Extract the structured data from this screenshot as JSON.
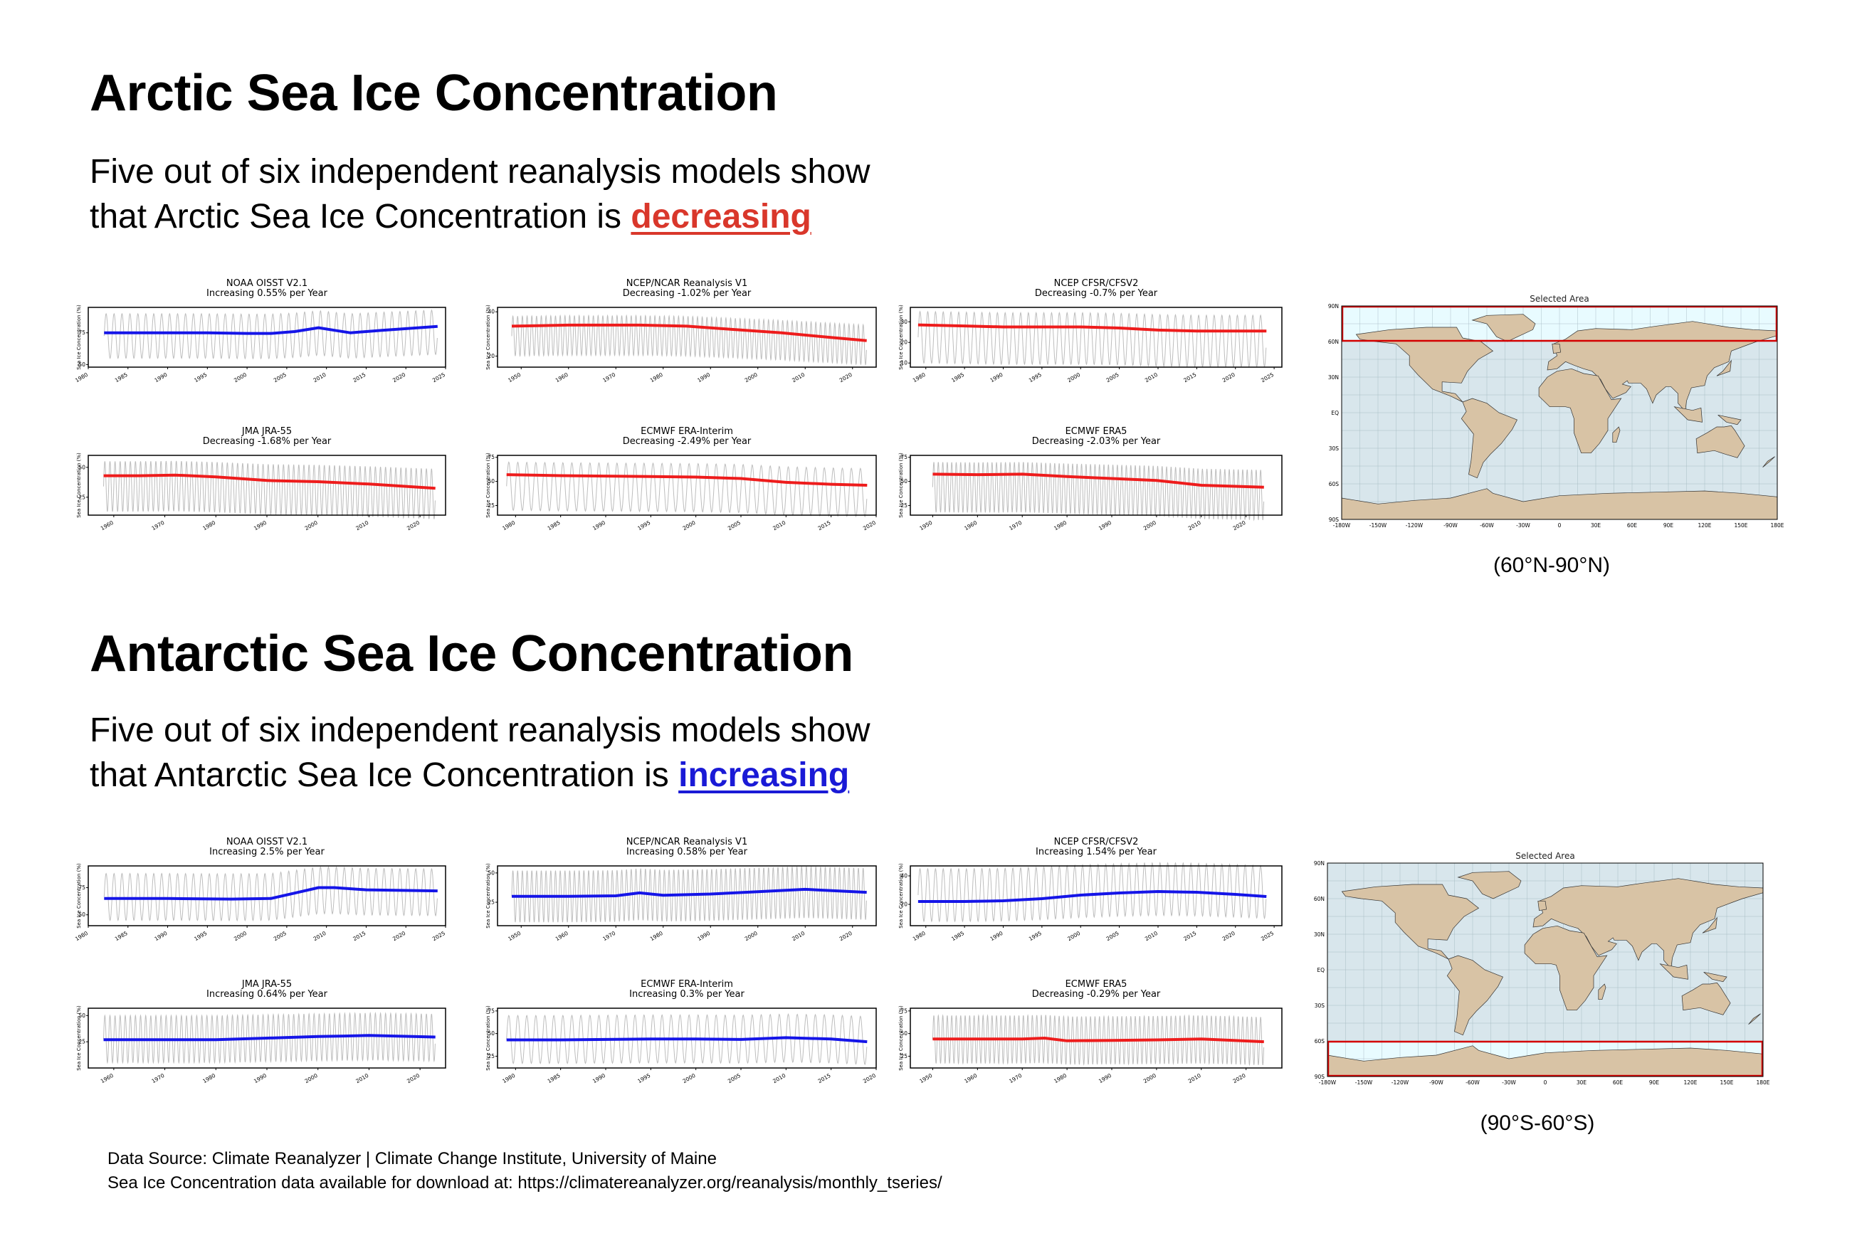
{
  "arctic": {
    "title": "Arctic Sea Ice Concentration",
    "sub_line1": "Five out of six independent reanalysis models show",
    "sub_line2": "that Arctic Sea Ice Concentration is ",
    "keyword": "decreasing",
    "keyword_color": "#d9372b",
    "map_title": "Selected Area",
    "map_caption": "(60°N-90°N)"
  },
  "antarctic": {
    "title": "Antarctic Sea Ice Concentration",
    "sub_line1": "Five out of six independent reanalysis models show",
    "sub_line2": "that Antarctic Sea Ice Concentration is ",
    "keyword": "increasing",
    "keyword_color": "#1a1ad6",
    "map_title": "Selected Area",
    "map_caption": "(90°S-60°S)"
  },
  "map_axis": {
    "lat_labels": [
      "90N",
      "60N",
      "30N",
      "EQ",
      "30S",
      "60S",
      "90S"
    ],
    "lon_labels": [
      "-180W",
      "-150W",
      "-120W",
      "-90W",
      "-60W",
      "-30W",
      "0",
      "30E",
      "60E",
      "90E",
      "120E",
      "150E",
      "180E"
    ]
  },
  "colors": {
    "increasing": "#1515e8",
    "decreasing": "#ee1c1c",
    "raw": "#bdbdbd",
    "land": "#d8c3a5",
    "ocean": "#d8e6ec",
    "selection": "#d40000"
  },
  "footer": {
    "line1": "Data Source: Climate Reanalyzer | Climate Change Institute, University of Maine",
    "line2": "Sea Ice Concentration data available for download at: https://climatereanalyzer.org/reanalysis/monthly_tseries/"
  },
  "chart_data": [
    {
      "id": "a1",
      "type": "line",
      "title": "NOAA OISST V2.1",
      "subtitle": "Increasing 0.55% per Year",
      "ylabel": "Sea Ice Concentration (%)",
      "xlim": [
        1980,
        2025
      ],
      "ylim": [
        48,
        95
      ],
      "yticks": [
        50,
        75
      ],
      "xticks": [
        1980,
        1985,
        1990,
        1995,
        2000,
        2005,
        2010,
        2015,
        2020,
        2025
      ],
      "trend_color": "#1515e8",
      "raw_range": [
        55,
        90
      ],
      "raw_start": 1982,
      "raw_end": 2024,
      "trend": {
        "x": [
          1982,
          1986,
          1990,
          1995,
          2000,
          2003,
          2006,
          2009,
          2011,
          2013,
          2017,
          2024
        ],
        "y": [
          75,
          75,
          75,
          75,
          74.5,
          74.5,
          76,
          79,
          77,
          75,
          77,
          80
        ]
      }
    },
    {
      "id": "a2",
      "type": "line",
      "title": "NCEP/NCAR Reanalysis V1",
      "subtitle": "Decreasing -1.02% per Year",
      "ylabel": "Sea Ice Concentration (%)",
      "xlim": [
        1945,
        2025
      ],
      "ylim": [
        15,
        42
      ],
      "yticks": [
        20,
        40
      ],
      "xticks": [
        1950,
        1960,
        1970,
        1980,
        1990,
        2000,
        2010,
        2020
      ],
      "trend_color": "#ee1c1c",
      "raw_range": [
        20,
        38
      ],
      "raw_start": 1948,
      "raw_end": 2023,
      "trend": {
        "x": [
          1948,
          1960,
          1975,
          1985,
          1995,
          2005,
          2015,
          2023
        ],
        "y": [
          33.5,
          34,
          34,
          33.5,
          32,
          30.5,
          28.5,
          27
        ]
      }
    },
    {
      "id": "a3",
      "type": "line",
      "title": "NCEP CFSR/CFSV2",
      "subtitle": "Decreasing -0.7% per Year",
      "ylabel": "Sea Ice Concentration (%)",
      "xlim": [
        1978,
        2026
      ],
      "ylim": [
        8,
        37
      ],
      "yticks": [
        10,
        20,
        30
      ],
      "xticks": [
        1980,
        1985,
        1990,
        1995,
        2000,
        2005,
        2010,
        2015,
        2020,
        2025
      ],
      "trend_color": "#ee1c1c",
      "raw_range": [
        10,
        35
      ],
      "raw_start": 1979,
      "raw_end": 2024,
      "trend": {
        "x": [
          1979,
          1985,
          1990,
          1995,
          2000,
          2005,
          2010,
          2015,
          2020,
          2024
        ],
        "y": [
          28.5,
          28,
          27.5,
          27.5,
          27.5,
          27,
          26,
          25.5,
          25.5,
          25.5
        ]
      }
    },
    {
      "id": "a4",
      "type": "line",
      "title": "JMA JRA-55",
      "subtitle": "Decreasing -1.68% per Year",
      "ylabel": "Sea Ice Concentration (%)",
      "xlim": [
        1955,
        2025
      ],
      "ylim": [
        10,
        60
      ],
      "yticks": [
        25,
        50
      ],
      "xticks": [
        1960,
        1970,
        1980,
        1990,
        2000,
        2010,
        2020
      ],
      "trend_color": "#ee1c1c",
      "raw_range": [
        13,
        55
      ],
      "raw_start": 1958,
      "raw_end": 2023,
      "trend": {
        "x": [
          1958,
          1965,
          1972,
          1980,
          1990,
          2000,
          2010,
          2023
        ],
        "y": [
          43,
          43,
          43.5,
          42,
          39,
          38,
          36,
          32.5
        ]
      }
    },
    {
      "id": "a5",
      "type": "line",
      "title": "ECMWF ERA-Interim",
      "subtitle": "Decreasing -2.49% per Year",
      "ylabel": "Sea Ice Concentration (%)",
      "xlim": [
        1978,
        2020
      ],
      "ylim": [
        15,
        77
      ],
      "yticks": [
        25,
        50,
        75
      ],
      "xticks": [
        1980,
        1985,
        1990,
        1995,
        2000,
        2005,
        2010,
        2015,
        2020
      ],
      "trend_color": "#ee1c1c",
      "raw_range": [
        20,
        70
      ],
      "raw_start": 1979,
      "raw_end": 2019,
      "trend": {
        "x": [
          1979,
          1985,
          1990,
          1995,
          2000,
          2005,
          2010,
          2015,
          2019
        ],
        "y": [
          57,
          56,
          55.5,
          55,
          54.5,
          53,
          49,
          47,
          46
        ]
      }
    },
    {
      "id": "a6",
      "type": "line",
      "title": "ECMWF ERA5",
      "subtitle": "Decreasing -2.03% per Year",
      "ylabel": "Sea Ice Concentration (%)",
      "xlim": [
        1945,
        2028
      ],
      "ylim": [
        15,
        77
      ],
      "yticks": [
        25,
        50,
        75
      ],
      "xticks": [
        1950,
        1960,
        1970,
        1980,
        1990,
        2000,
        2010,
        2020
      ],
      "trend_color": "#ee1c1c",
      "raw_range": [
        18,
        70
      ],
      "raw_start": 1950,
      "raw_end": 2024,
      "trend": {
        "x": [
          1950,
          1960,
          1970,
          1980,
          1990,
          2000,
          2010,
          2024
        ],
        "y": [
          57.5,
          57,
          57.5,
          55,
          53,
          51,
          46,
          44
        ]
      }
    },
    {
      "id": "b1",
      "type": "line",
      "title": "NOAA OISST V2.1",
      "subtitle": "Increasing 2.5% per Year",
      "ylabel": "Sea Ice Concentration (%)",
      "xlim": [
        1980,
        2025
      ],
      "ylim": [
        40,
        95
      ],
      "yticks": [
        50,
        75
      ],
      "xticks": [
        1980,
        1985,
        1990,
        1995,
        2000,
        2005,
        2010,
        2015,
        2020,
        2025
      ],
      "trend_color": "#1515e8",
      "raw_range": [
        45,
        88
      ],
      "raw_start": 1982,
      "raw_end": 2024,
      "trend": {
        "x": [
          1982,
          1990,
          1998,
          2003,
          2006,
          2009,
          2011,
          2015,
          2024
        ],
        "y": [
          65,
          65,
          64.5,
          65,
          70,
          75,
          75,
          73,
          72
        ]
      }
    },
    {
      "id": "b2",
      "type": "line",
      "title": "NCEP/NCAR Reanalysis V1",
      "subtitle": "Increasing 0.58% per Year",
      "ylabel": "Sea Ice Concentration (%)",
      "xlim": [
        1945,
        2025
      ],
      "ylim": [
        5,
        56
      ],
      "yticks": [
        25,
        50
      ],
      "xticks": [
        1950,
        1960,
        1970,
        1980,
        1990,
        2000,
        2010,
        2020
      ],
      "trend_color": "#1515e8",
      "raw_range": [
        8,
        52
      ],
      "raw_start": 1948,
      "raw_end": 2023,
      "trend": {
        "x": [
          1948,
          1960,
          1970,
          1975,
          1980,
          1990,
          2000,
          2010,
          2023
        ],
        "y": [
          30,
          30,
          30.5,
          33,
          31,
          32,
          34,
          36,
          33.5
        ]
      }
    },
    {
      "id": "b3",
      "type": "line",
      "title": "NCEP CFSR/CFSV2",
      "subtitle": "Increasing 1.54% per Year",
      "ylabel": "Sea Ice Concentration (%)",
      "xlim": [
        1978,
        2026
      ],
      "ylim": [
        5,
        47
      ],
      "yticks": [
        20,
        40
      ],
      "xticks": [
        1980,
        1985,
        1990,
        1995,
        2000,
        2005,
        2010,
        2015,
        2020,
        2025
      ],
      "trend_color": "#1515e8",
      "raw_range": [
        8,
        45
      ],
      "raw_start": 1979,
      "raw_end": 2024,
      "trend": {
        "x": [
          1979,
          1985,
          1990,
          1995,
          2000,
          2005,
          2010,
          2015,
          2020,
          2024
        ],
        "y": [
          22,
          22,
          22.5,
          24,
          26.5,
          28,
          29,
          28.5,
          27,
          25.5
        ]
      }
    },
    {
      "id": "b4",
      "type": "line",
      "title": "JMA JRA-55",
      "subtitle": "Increasing 0.64% per Year",
      "ylabel": "Sea Ice Concentration (%)",
      "xlim": [
        1955,
        2025
      ],
      "ylim": [
        0,
        57
      ],
      "yticks": [
        25,
        50
      ],
      "xticks": [
        1960,
        1970,
        1980,
        1990,
        2000,
        2010,
        2020
      ],
      "trend_color": "#1515e8",
      "raw_range": [
        5,
        50
      ],
      "raw_start": 1958,
      "raw_end": 2023,
      "trend": {
        "x": [
          1958,
          1970,
          1980,
          1990,
          2000,
          2005,
          2010,
          2023
        ],
        "y": [
          27,
          27,
          27,
          28.5,
          30,
          30.5,
          31,
          29.5
        ]
      }
    },
    {
      "id": "b5",
      "type": "line",
      "title": "ECMWF ERA-Interim",
      "subtitle": "Increasing 0.3% per Year",
      "ylabel": "Sea Ice Concentration (%)",
      "xlim": [
        1978,
        2020
      ],
      "ylim": [
        12,
        78
      ],
      "yticks": [
        25,
        50,
        75
      ],
      "xticks": [
        1980,
        1985,
        1990,
        1995,
        2000,
        2005,
        2010,
        2015,
        2020
      ],
      "trend_color": "#1515e8",
      "raw_range": [
        17,
        70
      ],
      "raw_start": 1979,
      "raw_end": 2019,
      "trend": {
        "x": [
          1979,
          1985,
          1990,
          1995,
          2000,
          2005,
          2010,
          2015,
          2019
        ],
        "y": [
          43,
          43,
          43.5,
          44,
          44,
          43.5,
          45.5,
          44,
          41
        ]
      }
    },
    {
      "id": "b6",
      "type": "line",
      "title": "ECMWF ERA5",
      "subtitle": "Decreasing -0.29% per Year",
      "ylabel": "Sea Ice Concentration (%)",
      "xlim": [
        1945,
        2028
      ],
      "ylim": [
        12,
        78
      ],
      "yticks": [
        25,
        50,
        75
      ],
      "xticks": [
        1950,
        1960,
        1970,
        1980,
        1990,
        2000,
        2010,
        2020
      ],
      "trend_color": "#ee1c1c",
      "raw_range": [
        17,
        70
      ],
      "raw_start": 1950,
      "raw_end": 2024,
      "trend": {
        "x": [
          1950,
          1960,
          1970,
          1975,
          1980,
          1990,
          2000,
          2010,
          2024
        ],
        "y": [
          44,
          44,
          44,
          45,
          42,
          42.5,
          43,
          44,
          41
        ]
      }
    }
  ]
}
